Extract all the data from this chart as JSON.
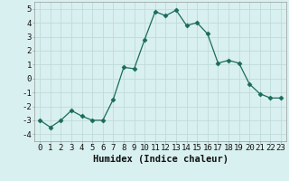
{
  "x": [
    0,
    1,
    2,
    3,
    4,
    5,
    6,
    7,
    8,
    9,
    10,
    11,
    12,
    13,
    14,
    15,
    16,
    17,
    18,
    19,
    20,
    21,
    22,
    23
  ],
  "y": [
    -3.0,
    -3.5,
    -3.0,
    -2.3,
    -2.7,
    -3.0,
    -3.0,
    -1.5,
    0.8,
    0.7,
    2.8,
    4.8,
    4.5,
    4.9,
    3.8,
    4.0,
    3.2,
    1.1,
    1.3,
    1.1,
    -0.4,
    -1.1,
    -1.4,
    -1.4
  ],
  "line_color": "#1a6b5a",
  "marker": "D",
  "marker_size": 2.5,
  "bg_color": "#d9f0f0",
  "grid_color": "#c0dada",
  "xlabel": "Humidex (Indice chaleur)",
  "xlim": [
    -0.5,
    23.5
  ],
  "ylim": [
    -4.5,
    5.5
  ],
  "yticks": [
    -4,
    -3,
    -2,
    -1,
    0,
    1,
    2,
    3,
    4,
    5
  ],
  "xticks": [
    0,
    1,
    2,
    3,
    4,
    5,
    6,
    7,
    8,
    9,
    10,
    11,
    12,
    13,
    14,
    15,
    16,
    17,
    18,
    19,
    20,
    21,
    22,
    23
  ],
  "tick_fontsize": 6.5,
  "xlabel_fontsize": 7.5
}
